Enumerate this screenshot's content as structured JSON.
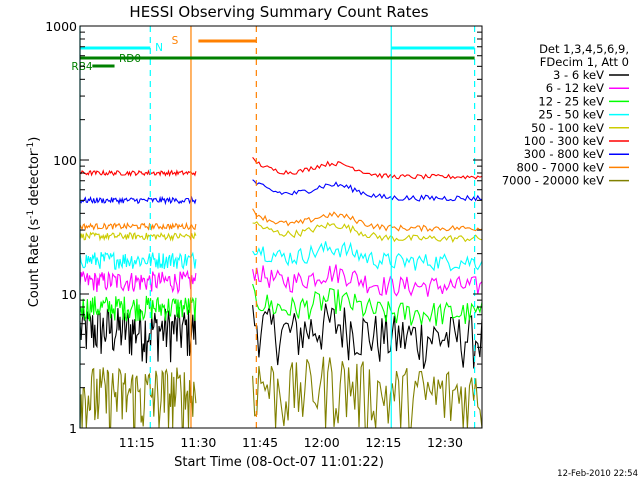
{
  "chart_data": {
    "type": "line",
    "title": "HESSI Observing Summary Count Rates",
    "xlabel": "Start Time (08-Oct-07 11:01:22)",
    "ylabel": "Count Rate (s",
    "ylabel_sup1": "-1",
    "ylabel_mid": " detector",
    "ylabel_sup2": "-1",
    "ylabel_end": ")",
    "y_scale": "log",
    "ylim": [
      1,
      1000
    ],
    "xlim_minutes": [
      11.02,
      12.65
    ],
    "y_ticks": [
      {
        "value": 1,
        "label": "1"
      },
      {
        "value": 10,
        "label": "10"
      },
      {
        "value": 100,
        "label": "100"
      },
      {
        "value": 1000,
        "label": "1000"
      }
    ],
    "x_ticks": [
      {
        "value": 11.25,
        "label": "11:15"
      },
      {
        "value": 11.5,
        "label": "11:30"
      },
      {
        "value": 11.75,
        "label": "11:45"
      },
      {
        "value": 12.0,
        "label": "12:00"
      },
      {
        "value": 12.25,
        "label": "12:15"
      },
      {
        "value": 12.5,
        "label": "12:30"
      }
    ],
    "legend": {
      "placement": "right",
      "header": [
        "Det 1,3,4,5,6,9,",
        "FDecim 1, Att 0"
      ]
    },
    "series": [
      {
        "name": "3 - 6 keV",
        "color": "#000000",
        "before": 5.5,
        "after": 4.8,
        "noise": 0.45
      },
      {
        "name": "6 - 12 keV",
        "color": "#ff00ff",
        "before": 12.5,
        "after": 11.5,
        "noise": 0.18
      },
      {
        "name": "12 - 25 keV",
        "color": "#00ff00",
        "before": 8.0,
        "after": 7.2,
        "noise": 0.22
      },
      {
        "name": "25 - 50 keV",
        "color": "#00ffff",
        "before": 18.0,
        "after": 17.5,
        "noise": 0.15
      },
      {
        "name": "50 - 100 keV",
        "color": "#cccc00",
        "before": 27.0,
        "after": 26.0,
        "noise": 0.06
      },
      {
        "name": "100 - 300 keV",
        "color": "#ff0000",
        "before": 80.0,
        "after": 75.0,
        "noise": 0.04
      },
      {
        "name": "300 - 800 keV",
        "color": "#0000ff",
        "before": 50.0,
        "after": 52.0,
        "noise": 0.05
      },
      {
        "name": "800 - 7000 keV",
        "color": "#ff8000",
        "before": 32.0,
        "after": 31.0,
        "noise": 0.05
      },
      {
        "name": "7000 - 20000 keV",
        "color": "#808000",
        "before": 1.8,
        "after": 1.8,
        "noise": 0.6
      }
    ],
    "flags": [
      {
        "label": "N",
        "color": "#00ffff"
      },
      {
        "label": "S",
        "color": "#ff8000"
      },
      {
        "label": "RD",
        "color": "#008000"
      },
      {
        "label": "RB4",
        "color": "#008000"
      }
    ],
    "timestamp": "12-Feb-2010 22:54"
  }
}
